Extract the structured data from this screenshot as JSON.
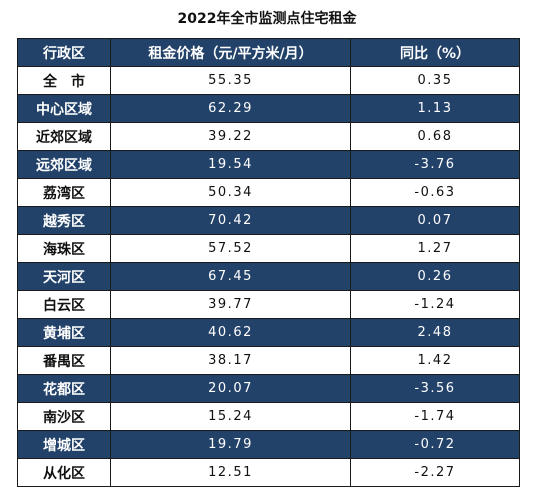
{
  "title": "2022年全市监测点住宅租金",
  "table": {
    "header": [
      "行政区",
      "租金价格（元/平方米/月）",
      "同比（%）"
    ],
    "rows": [
      [
        "全　市",
        55.35,
        0.35
      ],
      [
        "中心区域",
        62.29,
        1.13
      ],
      [
        "近郊区域",
        39.22,
        0.68
      ],
      [
        "远郊区域",
        19.54,
        -3.76
      ],
      [
        "荔湾区",
        50.34,
        -0.63
      ],
      [
        "越秀区",
        70.42,
        0.07
      ],
      [
        "海珠区",
        57.52,
        1.27
      ],
      [
        "天河区",
        67.45,
        0.26
      ],
      [
        "白云区",
        39.77,
        -1.24
      ],
      [
        "黄埔区",
        40.62,
        2.48
      ],
      [
        "番禺区",
        38.17,
        1.42
      ],
      [
        "花都区",
        20.07,
        -3.56
      ],
      [
        "南沙区",
        15.24,
        -1.74
      ],
      [
        "增城区",
        19.79,
        -0.72
      ],
      [
        "从化区",
        12.51,
        -2.27
      ]
    ]
  }
}
